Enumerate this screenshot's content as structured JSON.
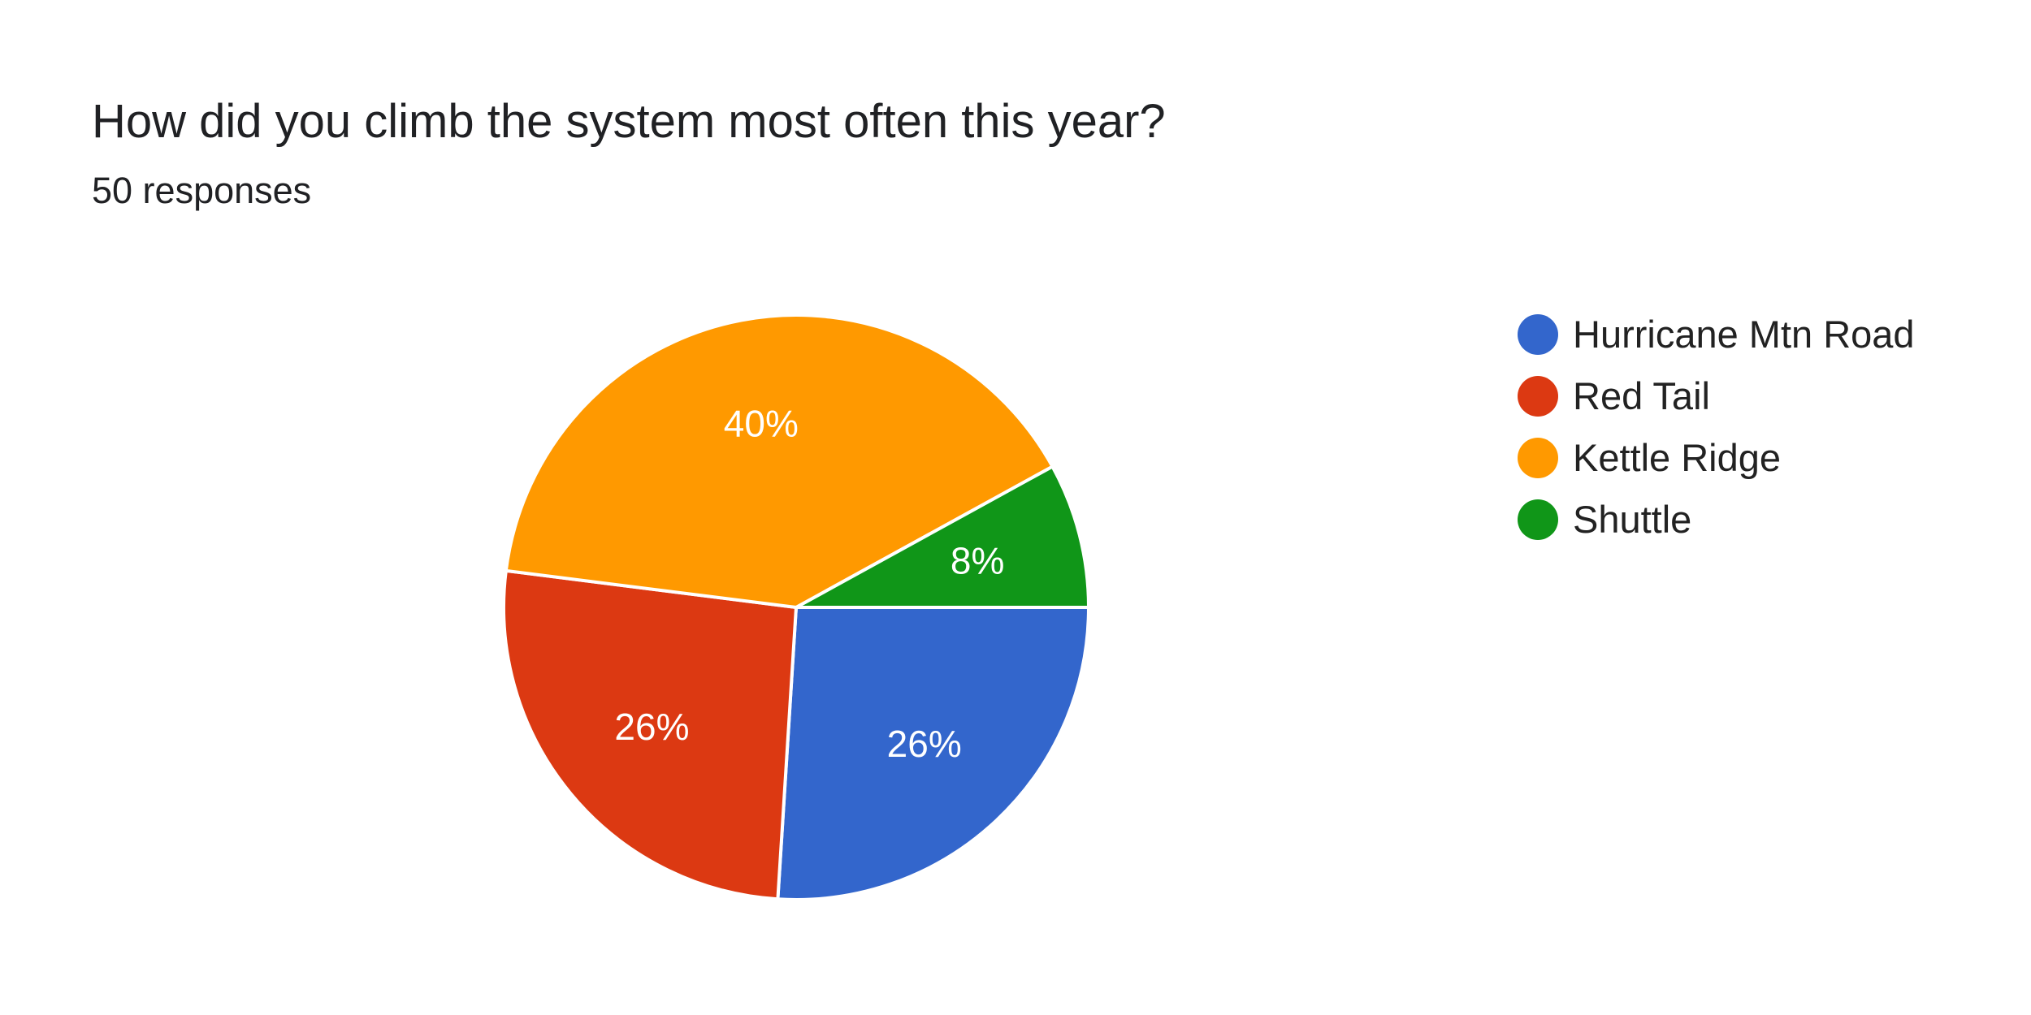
{
  "title": "How did you climb the system most often this year?",
  "subtitle": "50 responses",
  "chart_data": {
    "type": "pie",
    "title": "How did you climb the system most often this year?",
    "subtitle": "50 responses",
    "legend_position": "right",
    "start": "clockwise from 3 o'clock",
    "slices": [
      {
        "label": "Hurricane Mtn Road",
        "value": 26,
        "percent_label": "26%",
        "color": "#3366cc"
      },
      {
        "label": "Red Tail",
        "value": 26,
        "percent_label": "26%",
        "color": "#dc3912"
      },
      {
        "label": "Kettle Ridge",
        "value": 40,
        "percent_label": "40%",
        "color": "#ff9900"
      },
      {
        "label": "Shuttle",
        "value": 8,
        "percent_label": "8%",
        "color": "#109618"
      }
    ]
  }
}
